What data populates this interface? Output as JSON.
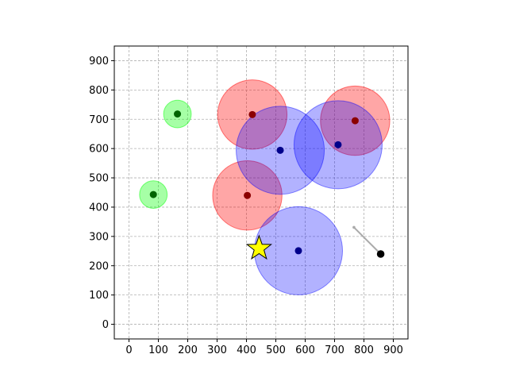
{
  "chart_data": {
    "type": "scatter",
    "title": "",
    "xlabel": "",
    "ylabel": "",
    "xlim": [
      -50,
      950
    ],
    "ylim": [
      -50,
      950
    ],
    "x_ticks": [
      0,
      100,
      200,
      300,
      400,
      500,
      600,
      700,
      800,
      900
    ],
    "y_ticks": [
      0,
      100,
      200,
      300,
      400,
      500,
      600,
      700,
      800,
      900
    ],
    "x_tick_labels": [
      "0",
      "100",
      "200",
      "300",
      "400",
      "500",
      "600",
      "700",
      "800",
      "900"
    ],
    "y_tick_labels": [
      "0",
      "100",
      "200",
      "300",
      "400",
      "500",
      "600",
      "700",
      "800",
      "900"
    ],
    "grid": true,
    "series": [
      {
        "color_fill": "#ff0000",
        "color_center": "#8b0000",
        "alpha": 0.35,
        "circles": [
          {
            "x": 420,
            "y": 716,
            "r": 118
          },
          {
            "x": 770,
            "y": 695,
            "r": 118
          },
          {
            "x": 403,
            "y": 440,
            "r": 118
          }
        ]
      },
      {
        "color_fill": "#0000ff",
        "color_center": "#00008b",
        "alpha": 0.3,
        "circles": [
          {
            "x": 515,
            "y": 594,
            "r": 150
          },
          {
            "x": 712,
            "y": 613,
            "r": 150
          },
          {
            "x": 577,
            "y": 251,
            "r": 150
          }
        ]
      },
      {
        "color_fill": "#00ff00",
        "color_center": "#006400",
        "alpha": 0.35,
        "circles": [
          {
            "x": 165,
            "y": 718,
            "r": 47
          },
          {
            "x": 83,
            "y": 443,
            "r": 47
          }
        ]
      }
    ],
    "star": {
      "x": 443,
      "y": 259,
      "color": "#ffff00"
    },
    "agent": {
      "x": 857,
      "y": 240,
      "color": "#000000"
    },
    "heading_line": {
      "x1": 766,
      "y1": 331,
      "x2": 857,
      "y2": 240,
      "color": "#aaaaaa"
    }
  }
}
